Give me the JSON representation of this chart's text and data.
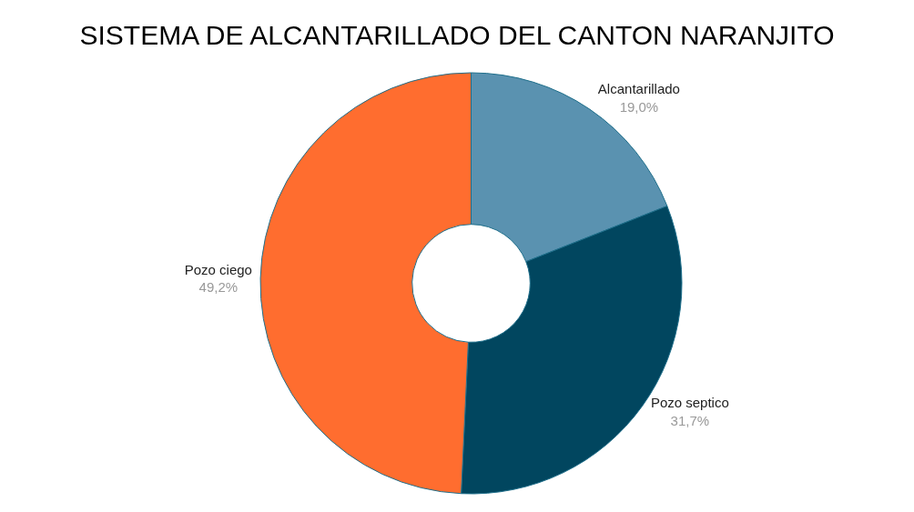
{
  "chart_data": {
    "type": "donut",
    "title": "SISTEMA DE ALCANTARILLADO DEL CANTON NARANJITO",
    "categories": [
      "Alcantarillado",
      "Pozo septico",
      "Pozo ciego"
    ],
    "values": [
      19.0,
      31.7,
      49.2
    ],
    "value_labels": [
      "19,0%",
      "31,7%",
      "49,2%"
    ],
    "colors": [
      "#5a92b0",
      "#01465f",
      "#ff6d2f"
    ],
    "legend": false
  }
}
